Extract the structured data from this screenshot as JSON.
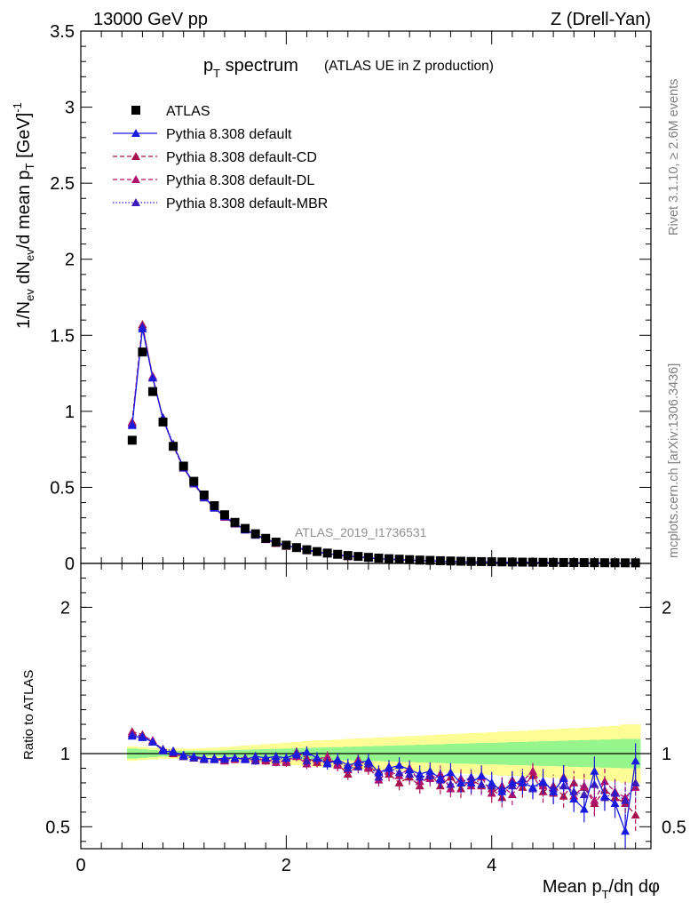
{
  "header": {
    "left": "13000 GeV pp",
    "right": "Z (Drell-Yan)"
  },
  "side_labels": {
    "rivet": "Rivet 3.1.10, ≥ 2.6M events",
    "mcplots": "mcplots.cern.ch [arXiv:1306.3436]"
  },
  "chart_data": {
    "type": "scatter",
    "title_main": "p",
    "title_sub": "T",
    "title_rest": " spectrum",
    "title_paren": "(ATLAS UE in Z production)",
    "analysis_label": "ATLAS_2019_I1736531",
    "xlabel": {
      "a": "Mean p",
      "sub": "T",
      "b": "/dη dφ"
    },
    "ylabel": {
      "a": "1/N",
      "sub1": "ev",
      "b": " dN",
      "sub2": "ev",
      "c": "/d mean p",
      "sub3": "T",
      "d": " [GeV]",
      "sup": "-1"
    },
    "ratio_ylabel": "Ratio to ATLAS",
    "xlim": [
      0,
      5.55
    ],
    "ylim": [
      0,
      3.5
    ],
    "ratio_ylim": [
      0.35,
      2.3
    ],
    "x_ticks": [
      "0",
      "2",
      "4"
    ],
    "y_ticks": [
      "0",
      "0.5",
      "1",
      "1.5",
      "2",
      "2.5",
      "3",
      "3.5"
    ],
    "ratio_ticks": [
      "0.5",
      "1",
      "2"
    ],
    "legend": [
      {
        "name": "ATLAS",
        "color": "#000000",
        "marker": "square",
        "line": "none"
      },
      {
        "name": "Pythia 8.308 default",
        "color": "#1a1adf",
        "marker": "triangle",
        "line": "solid"
      },
      {
        "name": "Pythia 8.308 default-CD",
        "color": "#a8134e",
        "marker": "triangle",
        "line": "dashed"
      },
      {
        "name": "Pythia 8.308 default-DL",
        "color": "#b0116c",
        "marker": "triangle",
        "line": "dashed"
      },
      {
        "name": "Pythia 8.308 default-MBR",
        "color": "#3a1ab8",
        "marker": "triangle",
        "line": "dotted"
      }
    ],
    "x": [
      0.5,
      0.6,
      0.7,
      0.8,
      0.9,
      1.0,
      1.1,
      1.2,
      1.3,
      1.4,
      1.5,
      1.6,
      1.7,
      1.8,
      1.9,
      2.0,
      2.1,
      2.2,
      2.3,
      2.4,
      2.5,
      2.6,
      2.7,
      2.8,
      2.9,
      3.0,
      3.1,
      3.2,
      3.3,
      3.4,
      3.5,
      3.6,
      3.7,
      3.8,
      3.9,
      4.0,
      4.1,
      4.2,
      4.3,
      4.4,
      4.5,
      4.6,
      4.7,
      4.8,
      4.9,
      5.0,
      5.1,
      5.2,
      5.3,
      5.4
    ],
    "atlas": [
      0.81,
      1.39,
      1.13,
      0.93,
      0.77,
      0.64,
      0.54,
      0.45,
      0.38,
      0.32,
      0.27,
      0.23,
      0.195,
      0.165,
      0.14,
      0.12,
      0.104,
      0.09,
      0.078,
      0.068,
      0.06,
      0.052,
      0.046,
      0.04,
      0.035,
      0.031,
      0.028,
      0.025,
      0.022,
      0.02,
      0.018,
      0.016,
      0.0145,
      0.013,
      0.012,
      0.011,
      0.01,
      0.009,
      0.0085,
      0.008,
      0.0073,
      0.0067,
      0.0062,
      0.0057,
      0.0053,
      0.0049,
      0.0046,
      0.0043,
      0.004,
      0.0037
    ],
    "band_inner": [
      0.035,
      0.03,
      0.025,
      0.02,
      0.02,
      0.02,
      0.02,
      0.02,
      0.02,
      0.022,
      0.024,
      0.026,
      0.028,
      0.03,
      0.032,
      0.034,
      0.036,
      0.038,
      0.04,
      0.042,
      0.044,
      0.046,
      0.048,
      0.05,
      0.052,
      0.054,
      0.056,
      0.058,
      0.06,
      0.062,
      0.064,
      0.066,
      0.068,
      0.07,
      0.072,
      0.074,
      0.076,
      0.078,
      0.08,
      0.082,
      0.084,
      0.086,
      0.088,
      0.09,
      0.092,
      0.094,
      0.096,
      0.098,
      0.1,
      0.1
    ],
    "band_outer": [
      0.05,
      0.045,
      0.04,
      0.035,
      0.035,
      0.035,
      0.035,
      0.037,
      0.04,
      0.045,
      0.05,
      0.055,
      0.06,
      0.065,
      0.07,
      0.075,
      0.08,
      0.085,
      0.09,
      0.093,
      0.096,
      0.1,
      0.103,
      0.106,
      0.11,
      0.113,
      0.116,
      0.12,
      0.123,
      0.126,
      0.13,
      0.133,
      0.136,
      0.14,
      0.143,
      0.146,
      0.15,
      0.153,
      0.156,
      0.16,
      0.163,
      0.166,
      0.17,
      0.173,
      0.176,
      0.18,
      0.185,
      0.19,
      0.2,
      0.2
    ],
    "series": [
      {
        "name": "Pythia 8.308 default",
        "ratio": [
          1.12,
          1.11,
          1.08,
          1.02,
          1.01,
          0.99,
          0.98,
          0.97,
          0.96,
          0.97,
          0.97,
          0.96,
          0.98,
          0.97,
          0.98,
          0.97,
          1.0,
          1.01,
          0.97,
          0.93,
          0.96,
          0.92,
          0.94,
          0.95,
          0.87,
          0.9,
          0.92,
          0.89,
          0.86,
          0.88,
          0.83,
          0.87,
          0.8,
          0.8,
          0.85,
          0.8,
          0.74,
          0.8,
          0.8,
          0.77,
          0.81,
          0.74,
          0.83,
          0.69,
          0.62,
          0.88,
          0.71,
          0.66,
          0.47,
          0.95
        ],
        "err": [
          0.02,
          0.02,
          0.02,
          0.02,
          0.02,
          0.02,
          0.02,
          0.02,
          0.02,
          0.02,
          0.025,
          0.025,
          0.03,
          0.03,
          0.03,
          0.035,
          0.035,
          0.04,
          0.04,
          0.04,
          0.045,
          0.045,
          0.05,
          0.05,
          0.05,
          0.055,
          0.055,
          0.06,
          0.06,
          0.06,
          0.065,
          0.065,
          0.07,
          0.07,
          0.07,
          0.075,
          0.075,
          0.08,
          0.08,
          0.08,
          0.085,
          0.085,
          0.09,
          0.09,
          0.09,
          0.1,
          0.1,
          0.1,
          0.12,
          0.12
        ]
      },
      {
        "name": "Pythia 8.308 default-CD",
        "ratio": [
          1.15,
          1.13,
          1.08,
          1.03,
          1.0,
          0.98,
          0.97,
          0.96,
          0.96,
          0.96,
          0.97,
          0.96,
          0.97,
          0.95,
          0.96,
          0.94,
          1.01,
          0.97,
          0.94,
          0.96,
          0.93,
          0.86,
          0.92,
          0.9,
          0.88,
          0.86,
          0.8,
          0.84,
          0.78,
          0.86,
          0.78,
          0.84,
          0.76,
          0.82,
          0.78,
          0.76,
          0.7,
          0.82,
          0.77,
          0.85,
          0.74,
          0.78,
          0.71,
          0.8,
          0.77,
          0.66,
          0.75,
          0.7,
          0.66,
          0.58
        ]
      },
      {
        "name": "Pythia 8.308 default-DL",
        "ratio": [
          1.14,
          1.12,
          1.09,
          1.02,
          1.01,
          0.99,
          0.97,
          0.97,
          0.96,
          0.95,
          0.96,
          0.97,
          0.96,
          0.96,
          0.94,
          0.95,
          0.98,
          0.93,
          0.96,
          0.98,
          0.92,
          0.89,
          0.96,
          0.91,
          0.82,
          0.88,
          0.85,
          0.9,
          0.81,
          0.83,
          0.86,
          0.76,
          0.83,
          0.78,
          0.84,
          0.73,
          0.78,
          0.72,
          0.81,
          0.88,
          0.78,
          0.73,
          0.84,
          0.71,
          0.78,
          0.68,
          0.81,
          0.74,
          0.7,
          0.77
        ]
      },
      {
        "name": "Pythia 8.308 default-MBR",
        "ratio": [
          1.13,
          1.12,
          1.08,
          1.03,
          1.02,
          0.98,
          0.97,
          0.96,
          0.97,
          0.96,
          0.97,
          0.97,
          0.95,
          0.97,
          0.96,
          0.97,
          0.99,
          0.95,
          0.97,
          0.94,
          0.95,
          0.9,
          0.91,
          0.93,
          0.84,
          0.91,
          0.87,
          0.86,
          0.84,
          0.85,
          0.82,
          0.79,
          0.8,
          0.84,
          0.79,
          0.78,
          0.76,
          0.78,
          0.83,
          0.76,
          0.8,
          0.76,
          0.78,
          0.74,
          0.72,
          0.79,
          0.7,
          0.73,
          0.68,
          0.8
        ]
      }
    ]
  }
}
